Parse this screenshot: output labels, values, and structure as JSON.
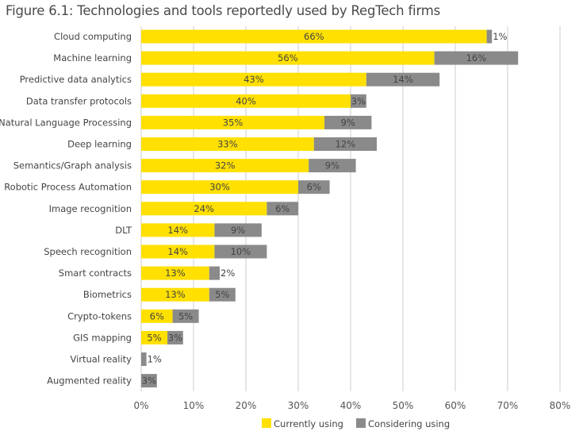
{
  "chart_data": {
    "type": "bar",
    "orientation": "horizontal",
    "stacked": true,
    "title": "Figure 6.1: Technologies and tools reportedly used by RegTech firms",
    "categories": [
      "Cloud computing",
      "Machine learning",
      "Predictive data analytics",
      "Data transfer protocols",
      "Natural Language Processing",
      "Deep learning",
      "Semantics/Graph analysis",
      "Robotic Process Automation",
      "Image recognition",
      "DLT",
      "Speech recognition",
      "Smart contracts",
      "Biometrics",
      "Crypto-tokens",
      "GIS mapping",
      "Virtual reality",
      "Augmented reality"
    ],
    "series": [
      {
        "name": "Currently using",
        "color": "#FFE000",
        "values": [
          66,
          56,
          43,
          40,
          35,
          33,
          32,
          30,
          24,
          14,
          14,
          13,
          13,
          6,
          5,
          0,
          0
        ]
      },
      {
        "name": "Considering using",
        "color": "#8A8A8A",
        "values": [
          1,
          16,
          14,
          3,
          9,
          12,
          9,
          6,
          6,
          9,
          10,
          2,
          5,
          5,
          3,
          1,
          3
        ]
      }
    ],
    "xlim": [
      0,
      80
    ],
    "xticks": [
      "0%",
      "10%",
      "20%",
      "30%",
      "40%",
      "50%",
      "60%",
      "70%",
      "80%"
    ],
    "grid": "vertical",
    "legend": "bottom"
  }
}
